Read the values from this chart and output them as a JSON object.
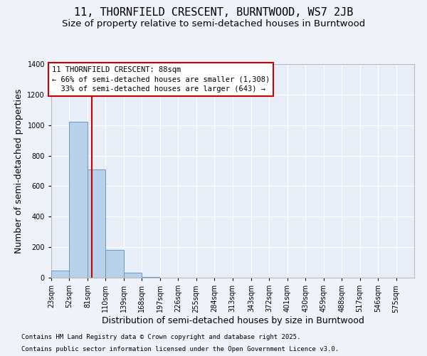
{
  "title_line1": "11, THORNFIELD CRESCENT, BURNTWOOD, WS7 2JB",
  "title_line2": "Size of property relative to semi-detached houses in Burntwood",
  "xlabel": "Distribution of semi-detached houses by size in Burntwood",
  "ylabel": "Number of semi-detached properties",
  "bar_color": "#b8d0ea",
  "bar_edge_color": "#6699cc",
  "background_color": "#e8eef8",
  "grid_color": "#ffffff",
  "bins": [
    23,
    52,
    81,
    110,
    139,
    168,
    197,
    226,
    255,
    284,
    313,
    343,
    372,
    401,
    430,
    459,
    488,
    517,
    546,
    575,
    604
  ],
  "counts": [
    45,
    1020,
    710,
    180,
    35,
    5,
    0,
    0,
    0,
    0,
    0,
    0,
    0,
    0,
    0,
    0,
    0,
    0,
    0,
    0
  ],
  "property_size": 88,
  "red_line_color": "#cc0000",
  "annotation_line1": "11 THORNFIELD CRESCENT: 88sqm",
  "annotation_line2": "← 66% of semi-detached houses are smaller (1,308)",
  "annotation_line3": "  33% of semi-detached houses are larger (643) →",
  "annotation_box_color": "#ffffff",
  "annotation_box_edge": "#cc0000",
  "ylim": [
    0,
    1400
  ],
  "yticks": [
    0,
    200,
    400,
    600,
    800,
    1000,
    1200,
    1400
  ],
  "footnote_line1": "Contains HM Land Registry data © Crown copyright and database right 2025.",
  "footnote_line2": "Contains public sector information licensed under the Open Government Licence v3.0.",
  "title_fontsize": 11,
  "subtitle_fontsize": 9.5,
  "axis_label_fontsize": 9,
  "tick_fontsize": 7,
  "annotation_fontsize": 7.5,
  "footnote_fontsize": 6.5
}
